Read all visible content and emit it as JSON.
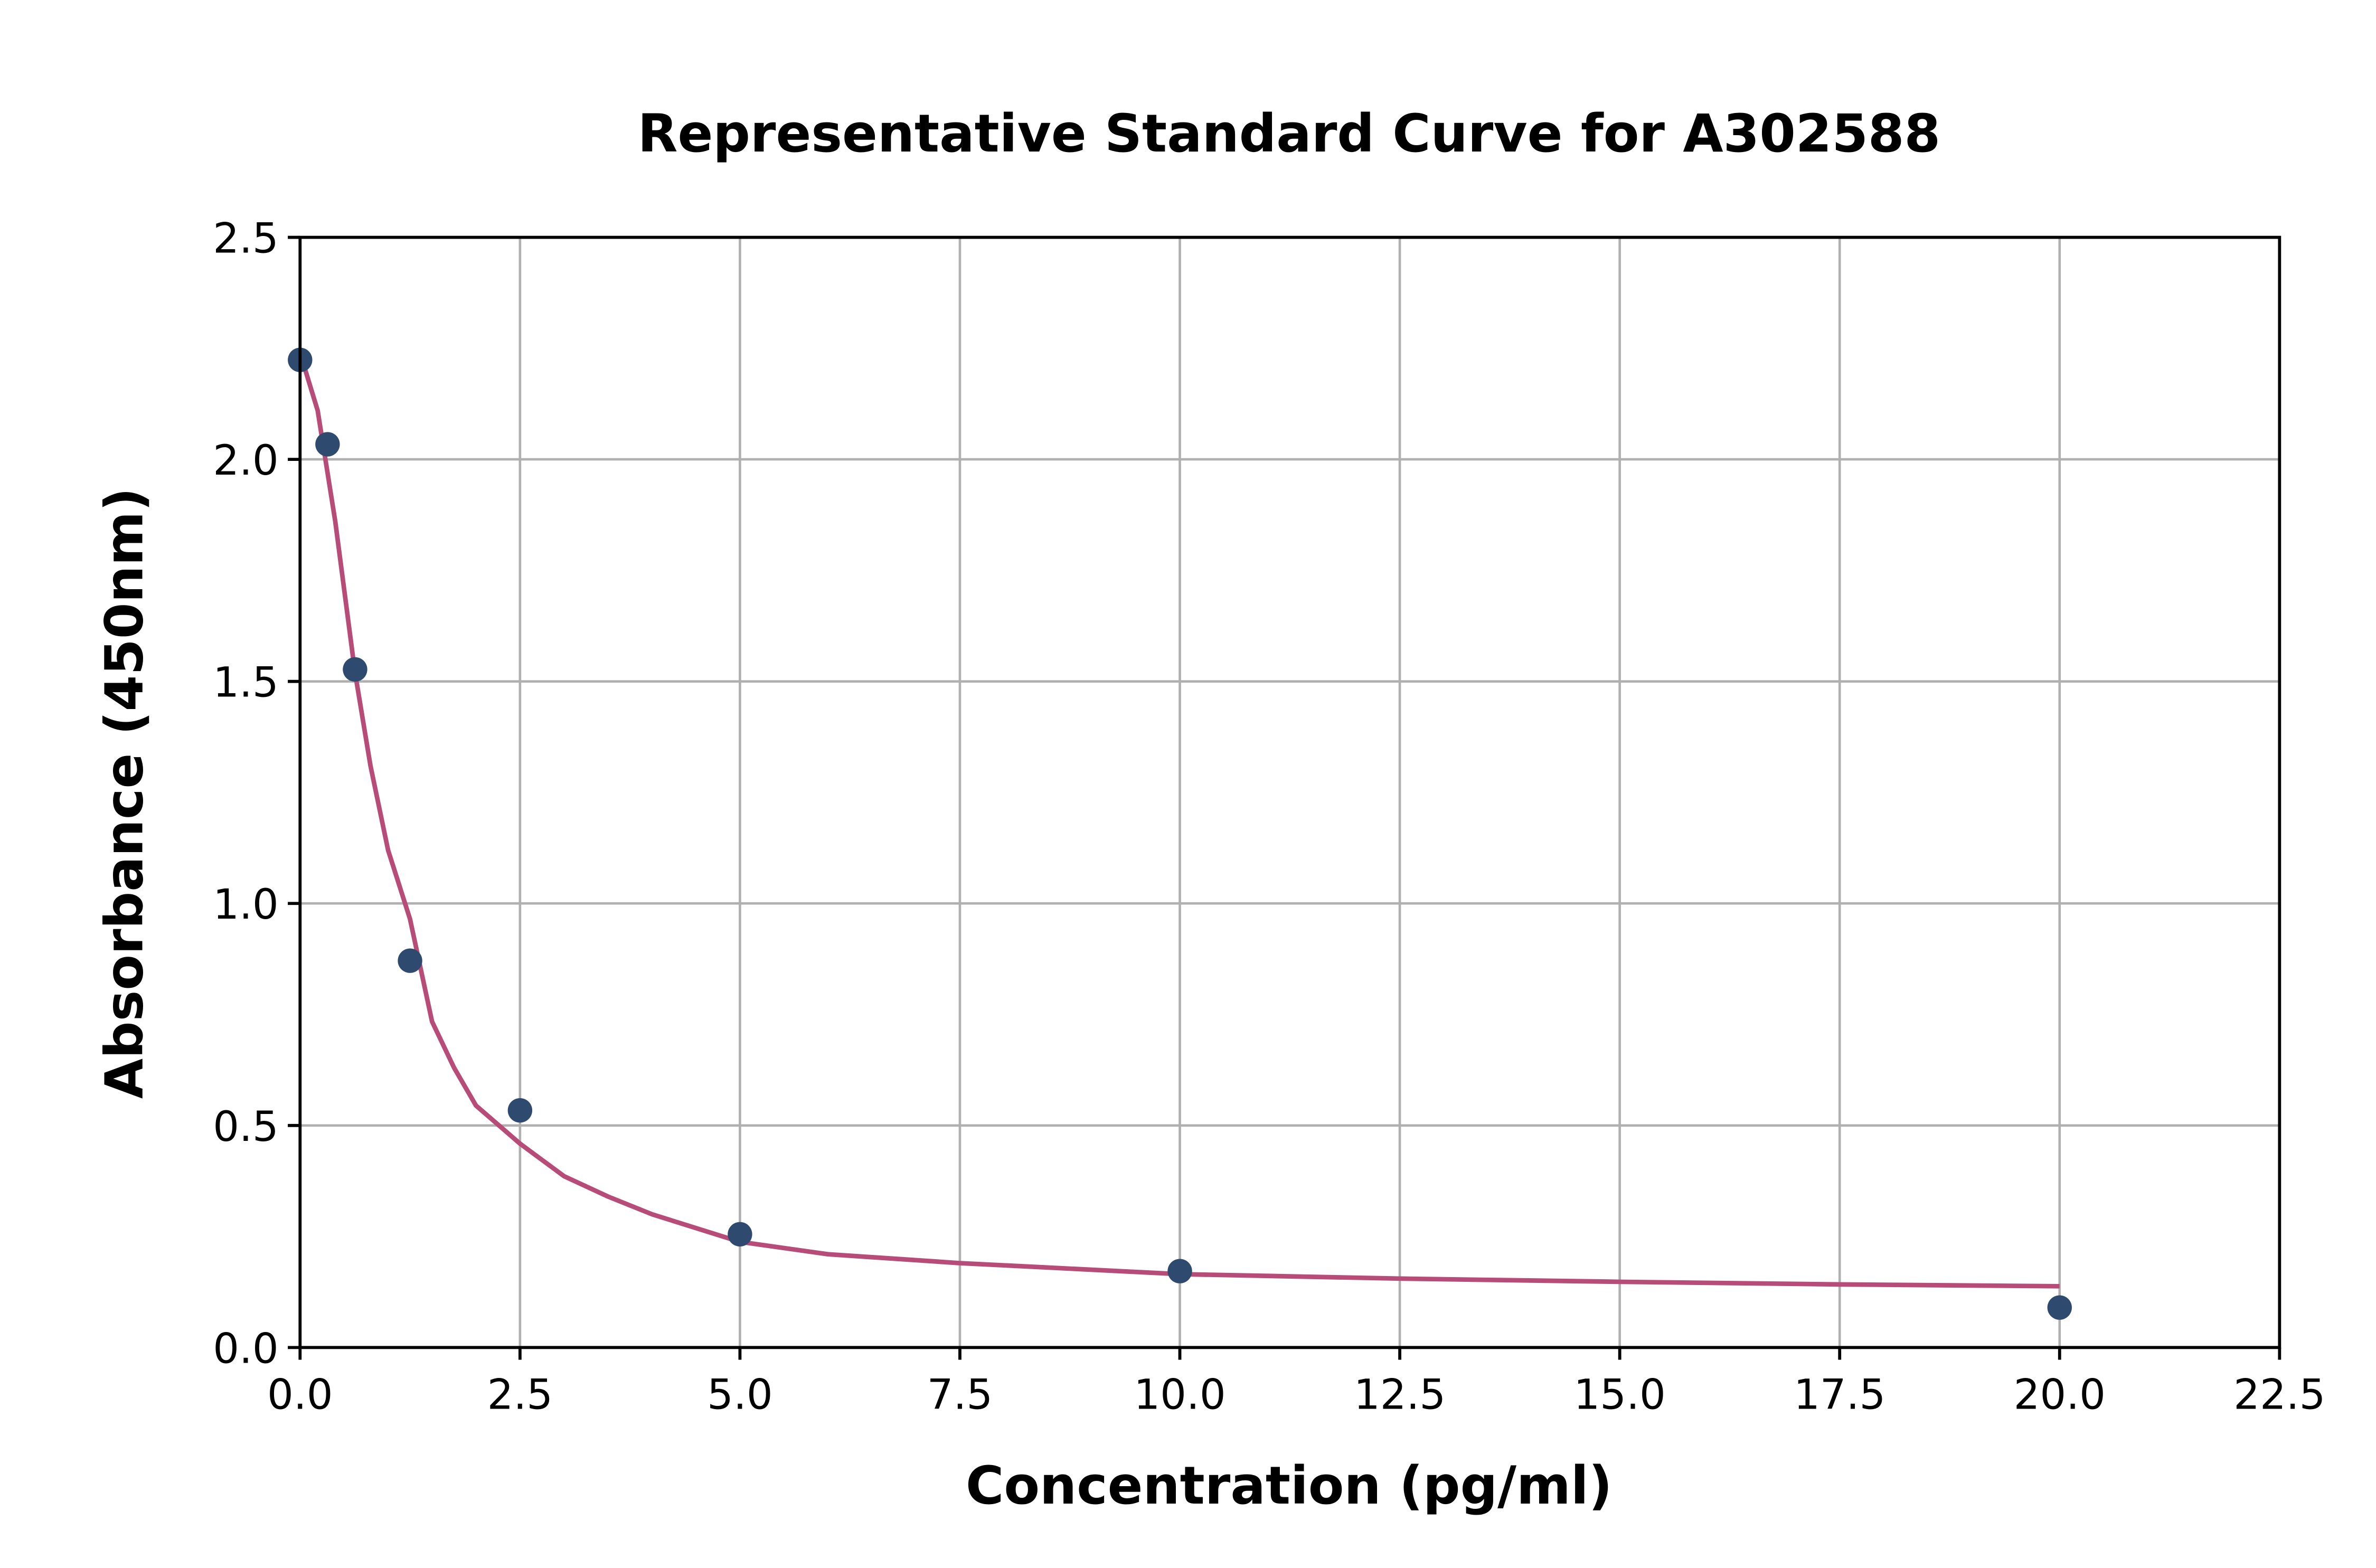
{
  "chart_data": {
    "type": "scatter",
    "title": "Representative Standard Curve for A302588",
    "xlabel": "Concentration (pg/ml)",
    "ylabel": "Absorbance (450nm)",
    "xlim": [
      0,
      22.5
    ],
    "ylim": [
      0,
      2.5
    ],
    "xticks": [
      "0.0",
      "2.5",
      "5.0",
      "7.5",
      "10.0",
      "12.5",
      "15.0",
      "17.5",
      "20.0",
      "22.5"
    ],
    "yticks": [
      "0.0",
      "0.5",
      "1.0",
      "1.5",
      "2.0",
      "2.5"
    ],
    "grid": true,
    "points": {
      "x": [
        0,
        0.3125,
        0.625,
        1.25,
        2.5,
        5,
        10,
        20
      ],
      "y": [
        2.224,
        2.034,
        1.527,
        0.871,
        0.534,
        0.255,
        0.172,
        0.09
      ]
    },
    "fit_curve": {
      "x": [
        0,
        0.2,
        0.4,
        0.625,
        0.8,
        1.0,
        1.25,
        1.5,
        1.75,
        2.0,
        2.5,
        3.0,
        3.5,
        4.0,
        5.0,
        6.0,
        7.5,
        10,
        12.5,
        15,
        17.5,
        20
      ],
      "y": [
        2.24,
        2.11,
        1.86,
        1.52,
        1.31,
        1.12,
        0.965,
        0.734,
        0.63,
        0.545,
        0.459,
        0.386,
        0.34,
        0.3,
        0.238,
        0.21,
        0.19,
        0.165,
        0.155,
        0.148,
        0.142,
        0.138
      ]
    },
    "colors": {
      "points": "#2e4a6f",
      "curve": "#b84c78"
    }
  }
}
